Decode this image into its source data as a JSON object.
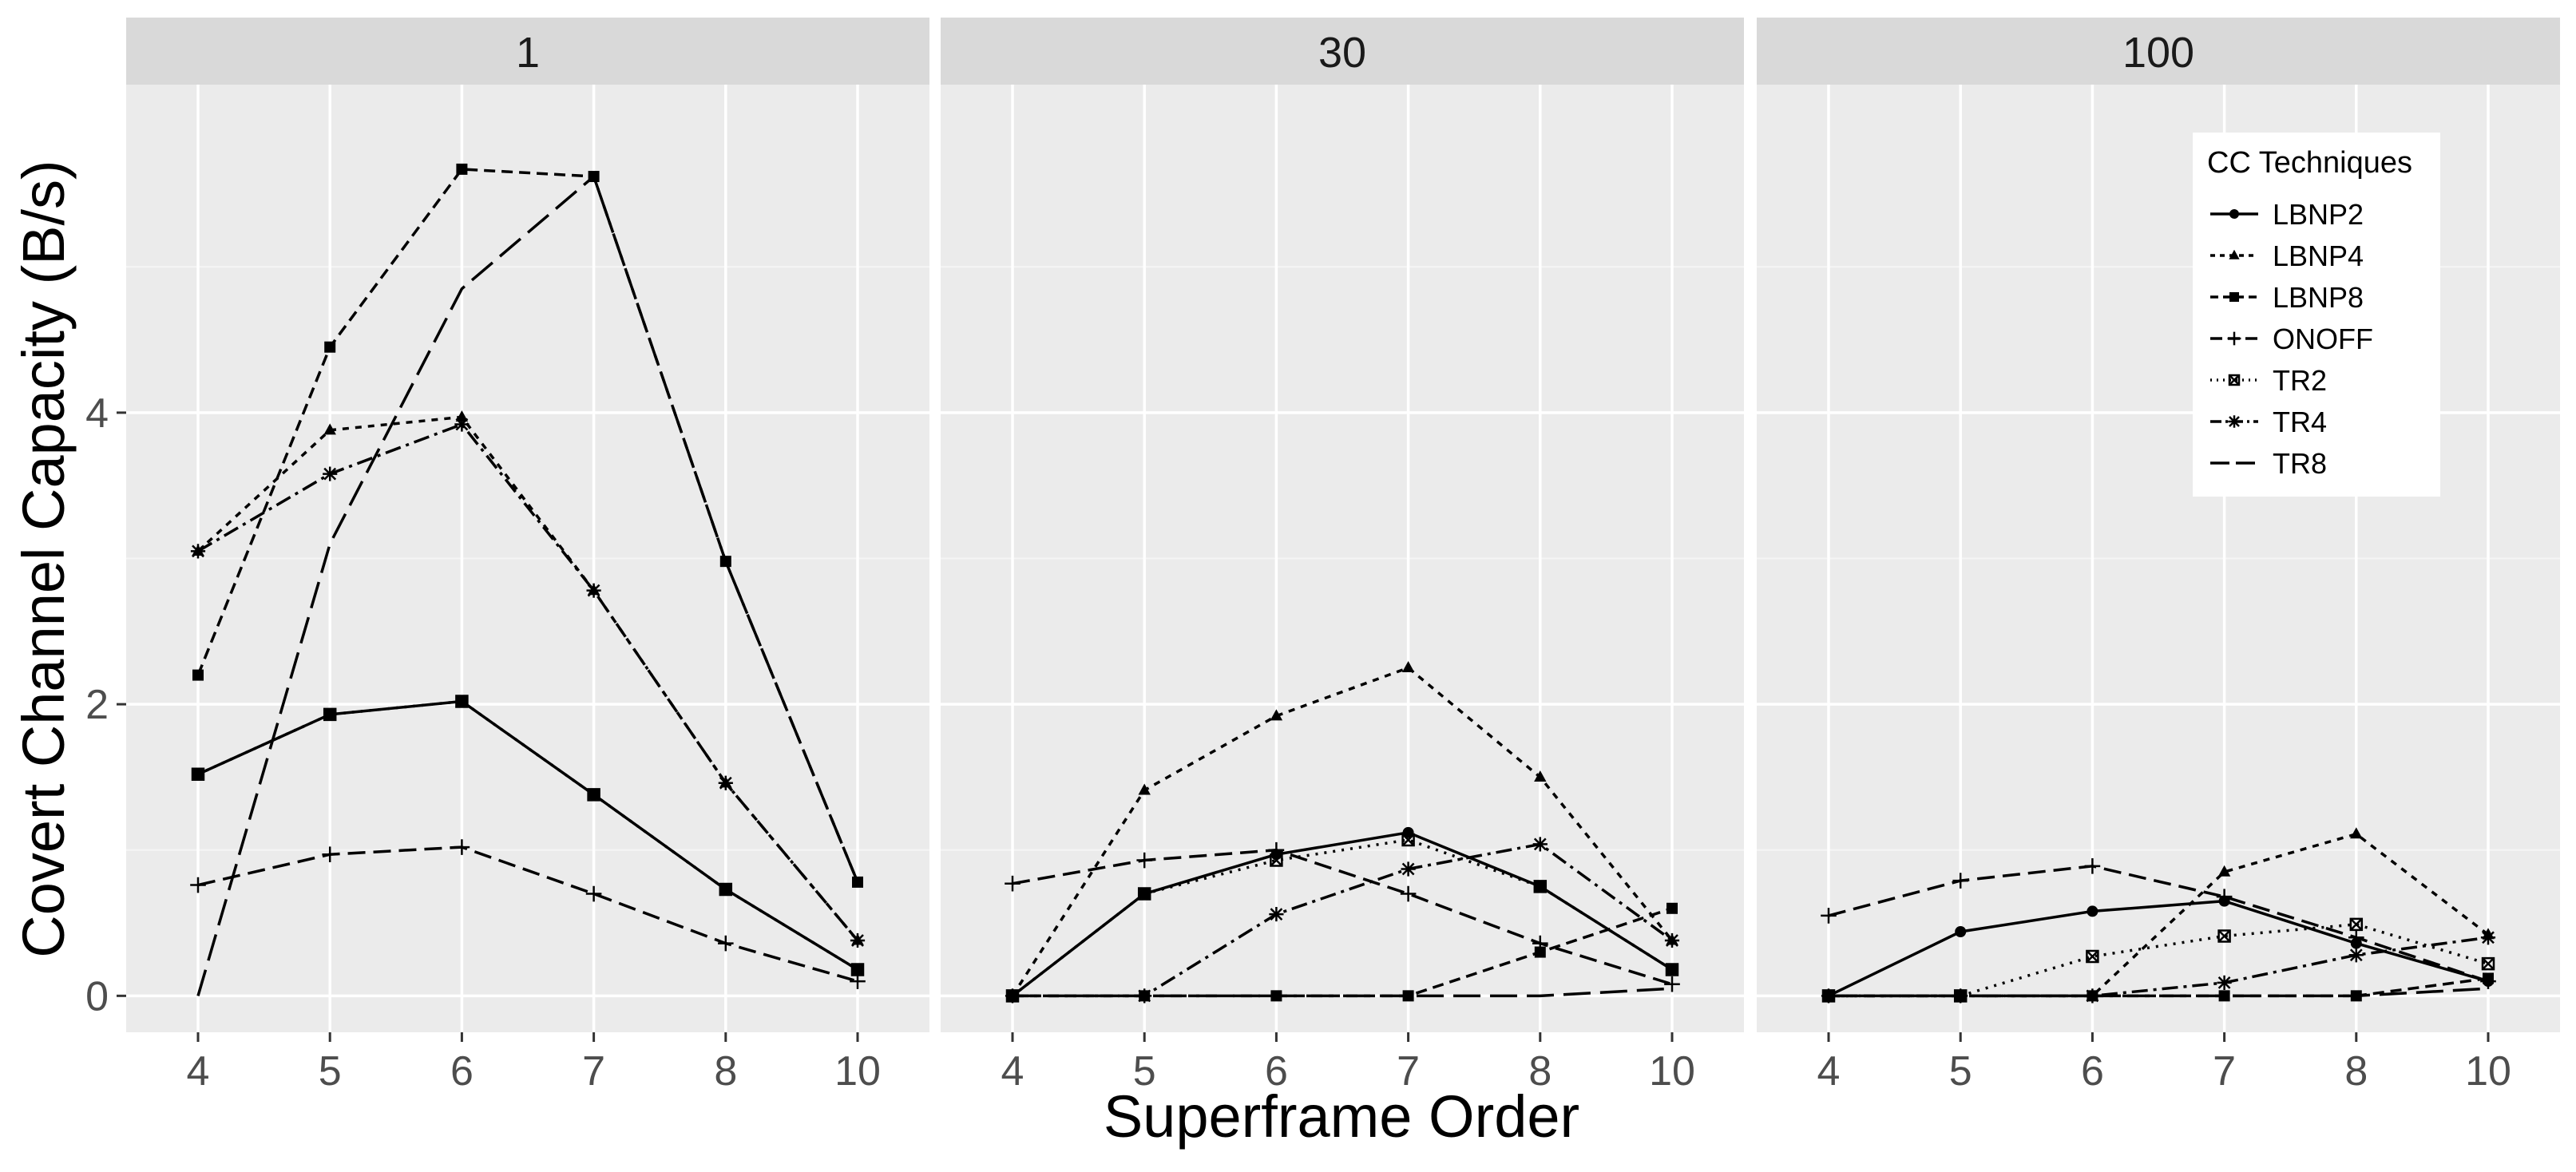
{
  "chart_data": {
    "type": "line",
    "ylabel": "Covert Channel Capacity (B/s)",
    "xlabel": "Superframe Order",
    "x": [
      4,
      5,
      6,
      7,
      8,
      10
    ],
    "x_tick_labels": [
      "4",
      "5",
      "6",
      "7",
      "8",
      "10"
    ],
    "y_ticks": [
      0,
      2,
      4
    ],
    "y_tick_labels": [
      "0",
      "2",
      "4"
    ],
    "ylim": [
      -0.25,
      6.25
    ],
    "grid": true,
    "legend": {
      "title": "CC Techniques",
      "placement": "inside top-right of last panel",
      "entries": [
        "LBNP2",
        "LBNP4",
        "LBNP8",
        "ONOFF",
        "TR2",
        "TR4",
        "TR8"
      ]
    },
    "series_styles": {
      "LBNP2": {
        "dash": "",
        "marker": "circle"
      },
      "LBNP4": {
        "dash": "8 8",
        "marker": "triangle"
      },
      "LBNP8": {
        "dash": "14 8",
        "marker": "square"
      },
      "ONOFF": {
        "dash": "22 10",
        "marker": "plus"
      },
      "TR2": {
        "dash": "3 8",
        "marker": "boxx"
      },
      "TR4": {
        "dash": "20 7 4 7",
        "marker": "asterisk"
      },
      "TR8": {
        "dash": "34 12",
        "marker": "none"
      }
    },
    "panels": [
      {
        "label": "1",
        "series": [
          {
            "name": "LBNP2",
            "values": [
              1.52,
              1.93,
              2.02,
              1.38,
              0.73,
              0.18
            ]
          },
          {
            "name": "LBNP4",
            "values": [
              3.05,
              3.88,
              3.97,
              2.78,
              1.46,
              0.38
            ]
          },
          {
            "name": "LBNP8",
            "values": [
              2.2,
              4.45,
              5.67,
              5.62,
              2.98,
              0.78
            ]
          },
          {
            "name": "ONOFF",
            "values": [
              0.76,
              0.97,
              1.02,
              0.7,
              0.36,
              0.1
            ]
          },
          {
            "name": "TR2",
            "values": [
              1.52,
              1.93,
              2.02,
              1.38,
              0.73,
              0.18
            ]
          },
          {
            "name": "TR4",
            "values": [
              3.05,
              3.58,
              3.92,
              2.78,
              1.46,
              0.38
            ]
          },
          {
            "name": "TR8",
            "values": [
              0.0,
              3.1,
              4.85,
              5.62,
              2.98,
              0.78
            ]
          }
        ]
      },
      {
        "label": "30",
        "series": [
          {
            "name": "LBNP2",
            "values": [
              0.0,
              0.7,
              0.97,
              1.12,
              0.75,
              0.18
            ]
          },
          {
            "name": "LBNP4",
            "values": [
              0.0,
              1.41,
              1.92,
              2.25,
              1.5,
              0.38
            ]
          },
          {
            "name": "LBNP8",
            "values": [
              0.0,
              0.0,
              0.0,
              0.0,
              0.3,
              0.6
            ]
          },
          {
            "name": "ONOFF",
            "values": [
              0.77,
              0.93,
              1.0,
              0.7,
              0.36,
              0.08
            ]
          },
          {
            "name": "TR2",
            "values": [
              0.0,
              0.7,
              0.93,
              1.07,
              0.75,
              0.18
            ]
          },
          {
            "name": "TR4",
            "values": [
              0.0,
              0.0,
              0.56,
              0.87,
              1.04,
              0.38
            ]
          },
          {
            "name": "TR8",
            "values": [
              0.0,
              0.0,
              0.0,
              0.0,
              0.0,
              0.05
            ]
          }
        ]
      },
      {
        "label": "100",
        "series": [
          {
            "name": "LBNP2",
            "values": [
              0.0,
              0.44,
              0.58,
              0.65,
              0.36,
              0.1
            ]
          },
          {
            "name": "LBNP4",
            "values": [
              0.0,
              0.0,
              0.0,
              0.85,
              1.11,
              0.42
            ]
          },
          {
            "name": "LBNP8",
            "values": [
              0.0,
              0.0,
              0.0,
              0.0,
              0.0,
              0.12
            ]
          },
          {
            "name": "ONOFF",
            "values": [
              0.55,
              0.79,
              0.89,
              0.68,
              0.4,
              0.1
            ]
          },
          {
            "name": "TR2",
            "values": [
              0.0,
              0.0,
              0.27,
              0.41,
              0.49,
              0.22
            ]
          },
          {
            "name": "TR4",
            "values": [
              0.0,
              0.0,
              0.0,
              0.09,
              0.28,
              0.4
            ]
          },
          {
            "name": "TR8",
            "values": [
              0.0,
              0.0,
              0.0,
              0.0,
              0.0,
              0.05
            ]
          }
        ]
      }
    ]
  }
}
